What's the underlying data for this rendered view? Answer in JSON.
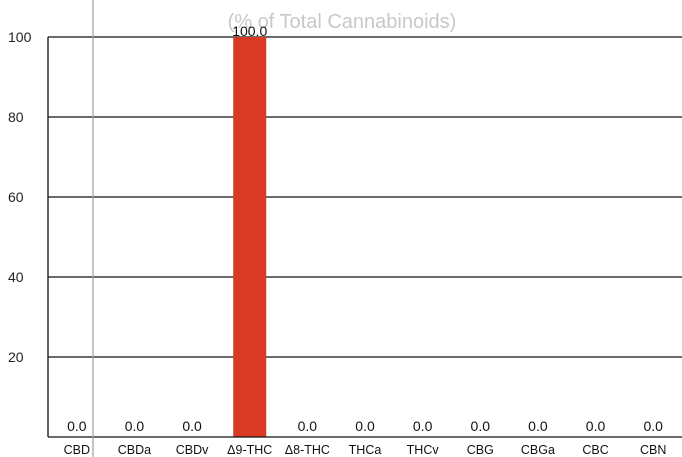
{
  "chart_data": {
    "type": "bar",
    "title": "(% of Total Cannabinoids)",
    "xlabel": "",
    "ylabel": "",
    "categories": [
      "CBD",
      "CBDa",
      "CBDv",
      "Δ9-THC",
      "Δ8-THC",
      "THCa",
      "THCv",
      "CBG",
      "CBGa",
      "CBC",
      "CBN"
    ],
    "values": [
      0.0,
      0.0,
      0.0,
      100.0,
      0.0,
      0.0,
      0.0,
      0.0,
      0.0,
      0.0,
      0.0
    ],
    "value_labels": [
      "0.0",
      "0.0",
      "0.0",
      "100.0",
      "0.0",
      "0.0",
      "0.0",
      "0.0",
      "0.0",
      "0.0",
      "0.0"
    ],
    "ylim": [
      0,
      100
    ],
    "yticks": [
      "20",
      "40",
      "60",
      "80",
      "100"
    ],
    "grid": true,
    "bar_color": "#d93a24"
  }
}
